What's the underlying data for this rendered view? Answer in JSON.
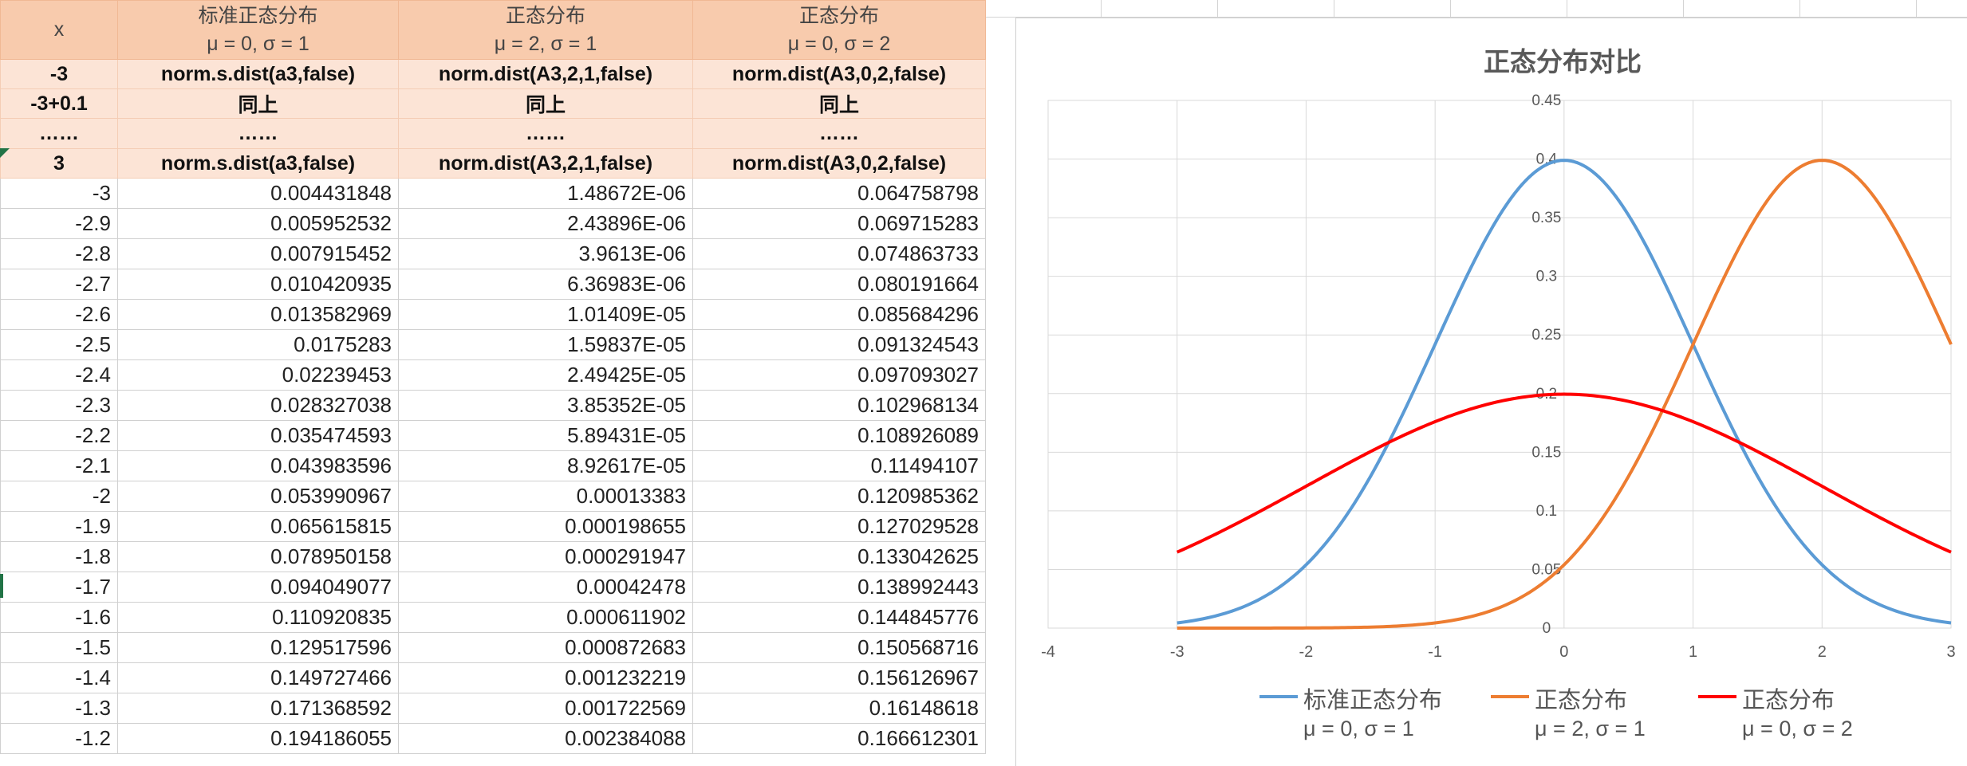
{
  "sheet": {
    "header": {
      "x": "x",
      "col1_l1": "标准正态分布",
      "col1_l2": "μ = 0, σ = 1",
      "col2_l1": "正态分布",
      "col2_l2": "μ = 2, σ = 1",
      "col3_l1": "正态分布",
      "col3_l2": "μ = 0, σ = 2"
    },
    "formula_rows": [
      [
        "-3",
        "norm.s.dist(a3,false)",
        "norm.dist(A3,2,1,false)",
        "norm.dist(A3,0,2,false)"
      ],
      [
        "-3+0.1",
        "同上",
        "同上",
        "同上"
      ],
      [
        "……",
        "……",
        "……",
        "……"
      ],
      [
        "3",
        "norm.s.dist(a3,false)",
        "norm.dist(A3,2,1,false)",
        "norm.dist(A3,0,2,false)"
      ]
    ],
    "rows": [
      [
        "-3",
        "0.004431848",
        "1.48672E-06",
        "0.064758798"
      ],
      [
        "-2.9",
        "0.005952532",
        "2.43896E-06",
        "0.069715283"
      ],
      [
        "-2.8",
        "0.007915452",
        "3.9613E-06",
        "0.074863733"
      ],
      [
        "-2.7",
        "0.010420935",
        "6.36983E-06",
        "0.080191664"
      ],
      [
        "-2.6",
        "0.013582969",
        "1.01409E-05",
        "0.085684296"
      ],
      [
        "-2.5",
        "0.0175283",
        "1.59837E-05",
        "0.091324543"
      ],
      [
        "-2.4",
        "0.02239453",
        "2.49425E-05",
        "0.097093027"
      ],
      [
        "-2.3",
        "0.028327038",
        "3.85352E-05",
        "0.102968134"
      ],
      [
        "-2.2",
        "0.035474593",
        "5.89431E-05",
        "0.108926089"
      ],
      [
        "-2.1",
        "0.043983596",
        "8.92617E-05",
        "0.11494107"
      ],
      [
        "-2",
        "0.053990967",
        "0.00013383",
        "0.120985362"
      ],
      [
        "-1.9",
        "0.065615815",
        "0.000198655",
        "0.127029528"
      ],
      [
        "-1.8",
        "0.078950158",
        "0.000291947",
        "0.133042625"
      ],
      [
        "-1.7",
        "0.094049077",
        "0.00042478",
        "0.138992443"
      ],
      [
        "-1.6",
        "0.110920835",
        "0.000611902",
        "0.144845776"
      ],
      [
        "-1.5",
        "0.129517596",
        "0.000872683",
        "0.150568716"
      ],
      [
        "-1.4",
        "0.149727466",
        "0.001232219",
        "0.156126967"
      ],
      [
        "-1.3",
        "0.171368592",
        "0.001722569",
        "0.16148618"
      ],
      [
        "-1.2",
        "0.194186055",
        "0.002384088",
        "0.166612301"
      ]
    ]
  },
  "chart_data": {
    "type": "line",
    "title": "正态分布对比",
    "xlabel": "",
    "ylabel": "",
    "xlim": [
      -4,
      3
    ],
    "ylim": [
      0,
      0.45
    ],
    "x_ticks": [
      "-4",
      "-3",
      "-2",
      "-1",
      "0",
      "1",
      "2",
      "3"
    ],
    "y_ticks": [
      "0",
      "0.05",
      "0.1",
      "0.15",
      "0.2",
      "0.25",
      "0.3",
      "0.35",
      "0.4",
      "0.45"
    ],
    "grid": true,
    "legend_position": "bottom",
    "series": [
      {
        "name": "标准正态分布",
        "name_l2": "μ = 0, σ = 1",
        "mu": 0,
        "sigma": 1,
        "color": "#5b9bd5",
        "x": [
          -3,
          -2.9,
          -2.8,
          -2.7,
          -2.6,
          -2.5,
          -2.4,
          -2.3,
          -2.2,
          -2.1,
          -2,
          -1.9,
          -1.8,
          -1.7,
          -1.6,
          -1.5,
          -1.4,
          -1.3,
          -1.2,
          -1.1,
          -1,
          -0.9,
          -0.8,
          -0.7,
          -0.6,
          -0.5,
          -0.4,
          -0.3,
          -0.2,
          -0.1,
          0,
          0.1,
          0.2,
          0.3,
          0.4,
          0.5,
          0.6,
          0.7,
          0.8,
          0.9,
          1,
          1.1,
          1.2,
          1.3,
          1.4,
          1.5,
          1.6,
          1.7,
          1.8,
          1.9,
          2,
          2.1,
          2.2,
          2.3,
          2.4,
          2.5,
          2.6,
          2.7,
          2.8,
          2.9,
          3
        ]
      },
      {
        "name": "正态分布",
        "name_l2": "μ = 2, σ = 1",
        "mu": 2,
        "sigma": 1,
        "color": "#ed7d31",
        "x": [
          -3,
          3
        ]
      },
      {
        "name": "正态分布",
        "name_l2": "μ = 0, σ = 2",
        "mu": 0,
        "sigma": 2,
        "color": "#ff0000",
        "x": [
          -3,
          3
        ]
      }
    ]
  }
}
